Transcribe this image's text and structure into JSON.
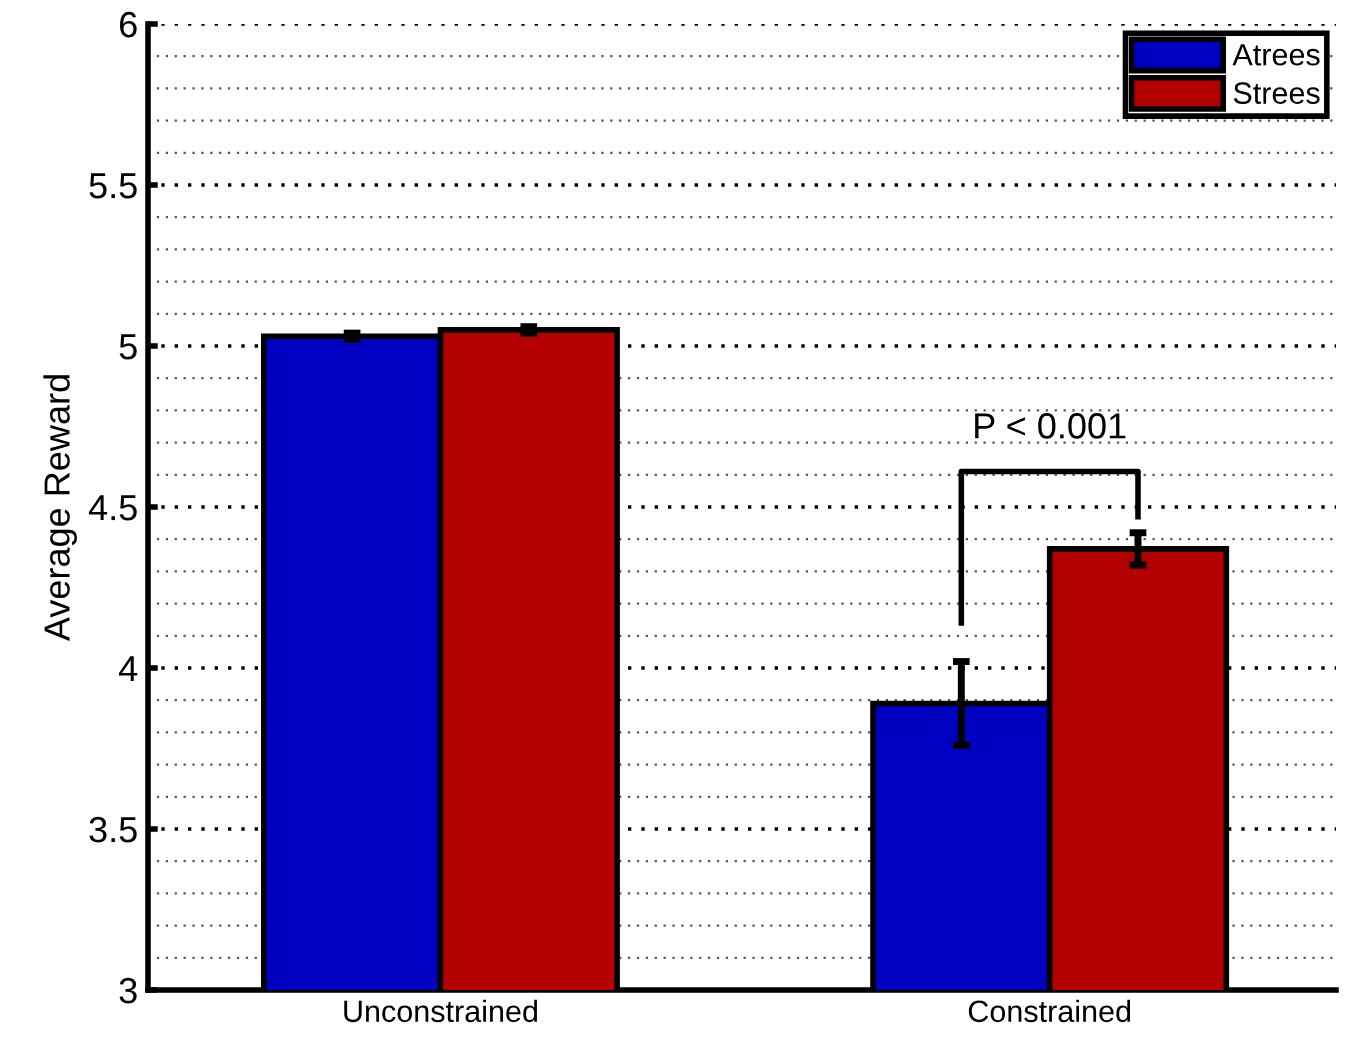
{
  "chart_data": {
    "type": "bar",
    "ylabel": "Average Reward",
    "categories": [
      "Unconstrained",
      "Constrained"
    ],
    "series": [
      {
        "name": "Atrees",
        "color": "#0000c0",
        "values": [
          5.03,
          3.89
        ],
        "errors": [
          0.01,
          0.13
        ]
      },
      {
        "name": "Strees",
        "color": "#b30000",
        "values": [
          5.05,
          4.37
        ],
        "errors": [
          0.01,
          0.05
        ]
      }
    ],
    "ylim": [
      3,
      6
    ],
    "yticks": [
      3,
      3.5,
      4,
      4.5,
      5,
      5.5,
      6
    ],
    "grid": "y",
    "legend": "top right",
    "annotations": [
      "P < 0.001"
    ]
  }
}
